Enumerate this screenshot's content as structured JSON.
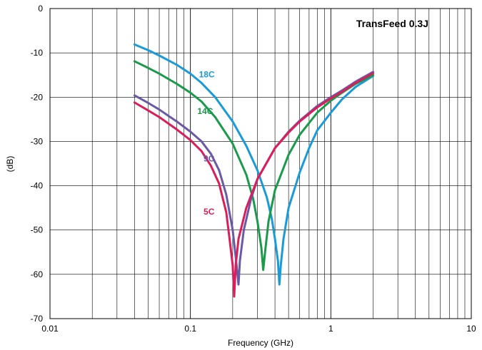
{
  "chart_data": {
    "type": "line",
    "title": "TransFeed 0.3J",
    "xlabel": "Frequency (GHz)",
    "ylabel": "(dB)",
    "xscale": "log",
    "xlim": [
      0.01,
      10
    ],
    "ylim": [
      -70,
      0
    ],
    "x_ticks": [
      "0.01",
      "0.1",
      "1",
      "10"
    ],
    "y_ticks": [
      "0",
      "-10",
      "-20",
      "-30",
      "-40",
      "-50",
      "-60",
      "-70"
    ],
    "grid": true,
    "series": [
      {
        "name": "18C",
        "color": "#1a9ad6",
        "points": [
          [
            0.04,
            -8.1
          ],
          [
            0.05,
            -9.4
          ],
          [
            0.06,
            -10.6
          ],
          [
            0.08,
            -12.7
          ],
          [
            0.1,
            -14.7
          ],
          [
            0.12,
            -16.8
          ],
          [
            0.15,
            -20.0
          ],
          [
            0.2,
            -25.5
          ],
          [
            0.25,
            -31.0
          ],
          [
            0.3,
            -36.5
          ],
          [
            0.35,
            -42.6
          ],
          [
            0.38,
            -47.5
          ],
          [
            0.4,
            -52.0
          ],
          [
            0.42,
            -57.0
          ],
          [
            0.43,
            -62.3
          ],
          [
            0.44,
            -58.0
          ],
          [
            0.46,
            -52.0
          ],
          [
            0.5,
            -45.0
          ],
          [
            0.6,
            -37.0
          ],
          [
            0.7,
            -31.5
          ],
          [
            0.8,
            -27.5
          ],
          [
            1.0,
            -23.5
          ],
          [
            1.2,
            -20.5
          ],
          [
            1.5,
            -17.7
          ],
          [
            2.0,
            -15.2
          ]
        ]
      },
      {
        "name": "14C",
        "color": "#1a9a4a",
        "points": [
          [
            0.04,
            -11.9
          ],
          [
            0.05,
            -13.4
          ],
          [
            0.06,
            -14.7
          ],
          [
            0.08,
            -17.0
          ],
          [
            0.1,
            -19.0
          ],
          [
            0.12,
            -21.0
          ],
          [
            0.15,
            -24.5
          ],
          [
            0.2,
            -30.5
          ],
          [
            0.25,
            -37.5
          ],
          [
            0.28,
            -43.0
          ],
          [
            0.3,
            -48.0
          ],
          [
            0.32,
            -54.0
          ],
          [
            0.33,
            -59.0
          ],
          [
            0.34,
            -55.0
          ],
          [
            0.36,
            -48.0
          ],
          [
            0.4,
            -41.0
          ],
          [
            0.5,
            -33.0
          ],
          [
            0.6,
            -28.5
          ],
          [
            0.8,
            -23.5
          ],
          [
            1.0,
            -20.8
          ],
          [
            1.2,
            -19.0
          ],
          [
            1.5,
            -17.0
          ],
          [
            2.0,
            -15.0
          ]
        ]
      },
      {
        "name": "9C",
        "color": "#6a5aa6",
        "points": [
          [
            0.04,
            -19.6
          ],
          [
            0.05,
            -21.3
          ],
          [
            0.06,
            -22.8
          ],
          [
            0.08,
            -25.5
          ],
          [
            0.1,
            -27.8
          ],
          [
            0.12,
            -30.0
          ],
          [
            0.14,
            -32.8
          ],
          [
            0.16,
            -36.5
          ],
          [
            0.18,
            -42.0
          ],
          [
            0.2,
            -50.0
          ],
          [
            0.21,
            -56.0
          ],
          [
            0.22,
            -62.3
          ],
          [
            0.225,
            -57.0
          ],
          [
            0.24,
            -50.0
          ],
          [
            0.27,
            -43.0
          ],
          [
            0.3,
            -38.5
          ],
          [
            0.4,
            -31.5
          ],
          [
            0.5,
            -27.8
          ],
          [
            0.6,
            -25.3
          ],
          [
            0.8,
            -22.0
          ],
          [
            1.0,
            -20.0
          ],
          [
            1.2,
            -18.5
          ],
          [
            1.5,
            -16.5
          ],
          [
            2.0,
            -14.3
          ]
        ]
      },
      {
        "name": "5C",
        "color": "#d91e5a",
        "points": [
          [
            0.04,
            -21.2
          ],
          [
            0.05,
            -23.0
          ],
          [
            0.06,
            -24.5
          ],
          [
            0.08,
            -27.3
          ],
          [
            0.1,
            -29.7
          ],
          [
            0.12,
            -32.2
          ],
          [
            0.14,
            -35.5
          ],
          [
            0.16,
            -39.5
          ],
          [
            0.18,
            -46.0
          ],
          [
            0.19,
            -52.0
          ],
          [
            0.2,
            -58.0
          ],
          [
            0.205,
            -65.0
          ],
          [
            0.21,
            -58.0
          ],
          [
            0.22,
            -52.0
          ],
          [
            0.25,
            -45.0
          ],
          [
            0.3,
            -38.5
          ],
          [
            0.4,
            -31.5
          ],
          [
            0.5,
            -28.0
          ],
          [
            0.6,
            -25.5
          ],
          [
            0.8,
            -22.3
          ],
          [
            1.0,
            -20.3
          ],
          [
            1.2,
            -18.8
          ],
          [
            1.5,
            -16.8
          ],
          [
            2.0,
            -14.6
          ]
        ]
      }
    ],
    "annotations": [
      {
        "text": "18C",
        "x": 0.115,
        "y": -15.5,
        "color": "#1a9ad6"
      },
      {
        "text": "14C",
        "x": 0.112,
        "y": -23.8,
        "color": "#1a9a4a"
      },
      {
        "text": "9C",
        "x": 0.124,
        "y": -34.5,
        "color": "#6a5aa6"
      },
      {
        "text": "5C",
        "x": 0.124,
        "y": -46.5,
        "color": "#d91e5a"
      }
    ]
  }
}
